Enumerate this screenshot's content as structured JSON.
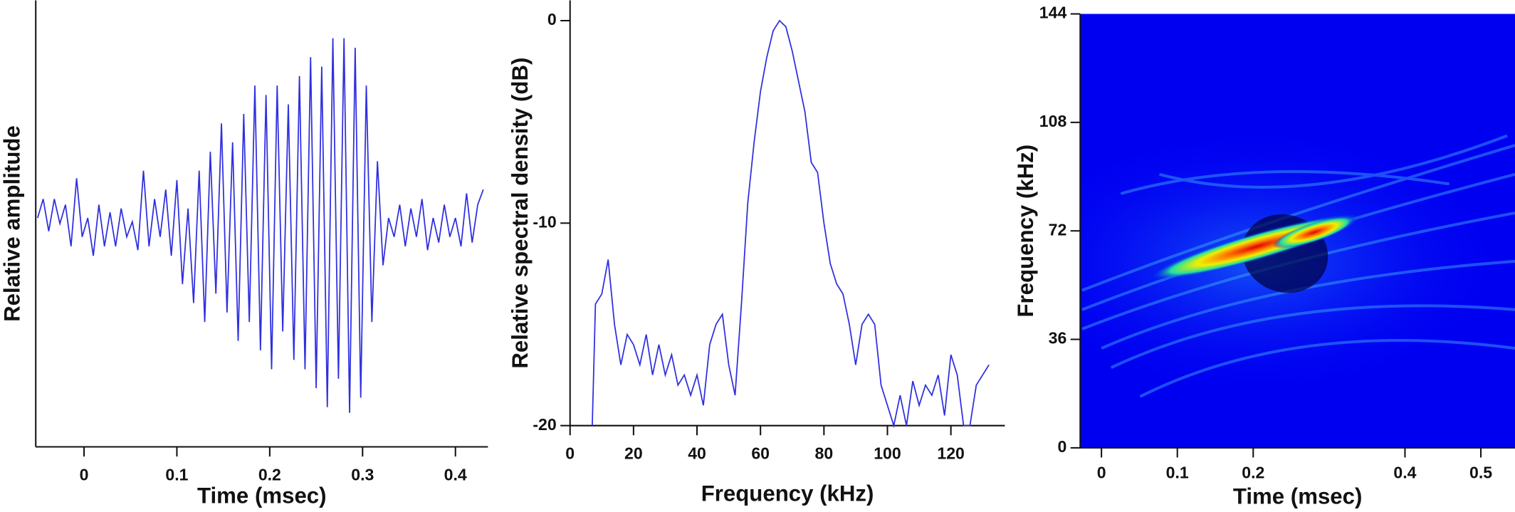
{
  "chart_data": [
    {
      "type": "line",
      "xlabel": "Time (msec)",
      "ylabel": "Relative amplitude",
      "color": "#2f2fe0",
      "xlim": [
        -0.052,
        0.435
      ],
      "ylim": [
        -1.16,
        1.2
      ],
      "xticks": [
        0,
        0.1,
        0.2,
        0.3,
        0.4
      ],
      "x": [
        -0.05,
        -0.044,
        -0.038,
        -0.032,
        -0.026,
        -0.02,
        -0.014,
        -0.008,
        -0.002,
        0.004,
        0.01,
        0.016,
        0.022,
        0.028,
        0.034,
        0.04,
        0.046,
        0.052,
        0.058,
        0.064,
        0.07,
        0.076,
        0.082,
        0.088,
        0.094,
        0.1,
        0.106,
        0.112,
        0.118,
        0.124,
        0.13,
        0.136,
        0.142,
        0.148,
        0.154,
        0.16,
        0.166,
        0.172,
        0.178,
        0.184,
        0.19,
        0.196,
        0.202,
        0.208,
        0.214,
        0.22,
        0.226,
        0.232,
        0.238,
        0.244,
        0.25,
        0.256,
        0.262,
        0.268,
        0.274,
        0.28,
        0.286,
        0.292,
        0.298,
        0.304,
        0.31,
        0.316,
        0.322,
        0.328,
        0.334,
        0.34,
        0.346,
        0.352,
        0.358,
        0.364,
        0.37,
        0.376,
        0.382,
        0.388,
        0.394,
        0.4,
        0.406,
        0.412,
        0.418,
        0.424,
        0.43
      ],
      "values": [
        0.05,
        0.15,
        -0.02,
        0.15,
        0.02,
        0.12,
        -0.1,
        0.26,
        -0.05,
        0.05,
        -0.15,
        0.12,
        -0.1,
        0.08,
        -0.1,
        0.1,
        -0.05,
        0.03,
        -0.12,
        0.3,
        -0.1,
        0.15,
        -0.05,
        0.2,
        -0.15,
        0.25,
        -0.3,
        0.1,
        -0.4,
        0.3,
        -0.5,
        0.4,
        -0.35,
        0.55,
        -0.45,
        0.45,
        -0.6,
        0.6,
        -0.5,
        0.75,
        -0.65,
        0.7,
        -0.75,
        0.75,
        -0.55,
        0.65,
        -0.7,
        0.8,
        -0.75,
        0.9,
        -0.85,
        0.85,
        -0.95,
        1.0,
        -0.8,
        1.0,
        -0.98,
        0.95,
        -0.9,
        0.75,
        -0.5,
        0.35,
        -0.2,
        0.05,
        -0.05,
        0.12,
        -0.1,
        0.1,
        -0.05,
        0.15,
        -0.12,
        0.05,
        -0.08,
        0.12,
        -0.05,
        0.05,
        -0.1,
        0.18,
        -0.08,
        0.12,
        0.2
      ]
    },
    {
      "type": "line",
      "xlabel": "Frequency (kHz)",
      "ylabel": "Relative spectral density (dB)",
      "color": "#2f2fe0",
      "xlim": [
        0,
        137
      ],
      "ylim": [
        -20,
        1
      ],
      "xticks": [
        0,
        20,
        40,
        60,
        80,
        100,
        120
      ],
      "yticks": [
        -20,
        -10,
        0
      ],
      "x": [
        7,
        8,
        10,
        12,
        14,
        16,
        18,
        20,
        22,
        24,
        26,
        28,
        30,
        32,
        34,
        36,
        38,
        40,
        42,
        44,
        46,
        48,
        50,
        52,
        54,
        56,
        58,
        60,
        62,
        64,
        66,
        68,
        70,
        72,
        74,
        76,
        78,
        80,
        82,
        84,
        86,
        88,
        90,
        92,
        94,
        96,
        98,
        100,
        102,
        104,
        106,
        108,
        110,
        112,
        114,
        116,
        118,
        120,
        122,
        124,
        126,
        128,
        130,
        132
      ],
      "values": [
        -20,
        -14,
        -13.5,
        -11.8,
        -15,
        -17,
        -15.5,
        -16,
        -17,
        -15.5,
        -17.5,
        -16,
        -17.5,
        -16.5,
        -18,
        -17.5,
        -18.5,
        -17.5,
        -19,
        -16,
        -15,
        -14.5,
        -17,
        -18.5,
        -14,
        -9,
        -6,
        -3.5,
        -1.8,
        -0.5,
        0,
        -0.3,
        -1.5,
        -3,
        -4.5,
        -7,
        -7.5,
        -10,
        -12,
        -13,
        -13.5,
        -15,
        -17,
        -15,
        -14.5,
        -15,
        -18,
        -19,
        -20,
        -18.5,
        -20,
        -17.8,
        -19,
        -18,
        -18.5,
        -17.5,
        -19.5,
        -16.5,
        -17.5,
        -20,
        -20,
        -18,
        -17.5,
        -17
      ]
    },
    {
      "type": "spectrogram",
      "xlabel": "Time (msec)",
      "ylabel": "Frequency (kHz)",
      "xlim": [
        -0.028,
        0.545
      ],
      "ylim": [
        0,
        144
      ],
      "xticks": [
        0,
        0.1,
        0.2,
        0.4,
        0.5
      ],
      "yticks": [
        0,
        36,
        72,
        108,
        144
      ]
    }
  ]
}
